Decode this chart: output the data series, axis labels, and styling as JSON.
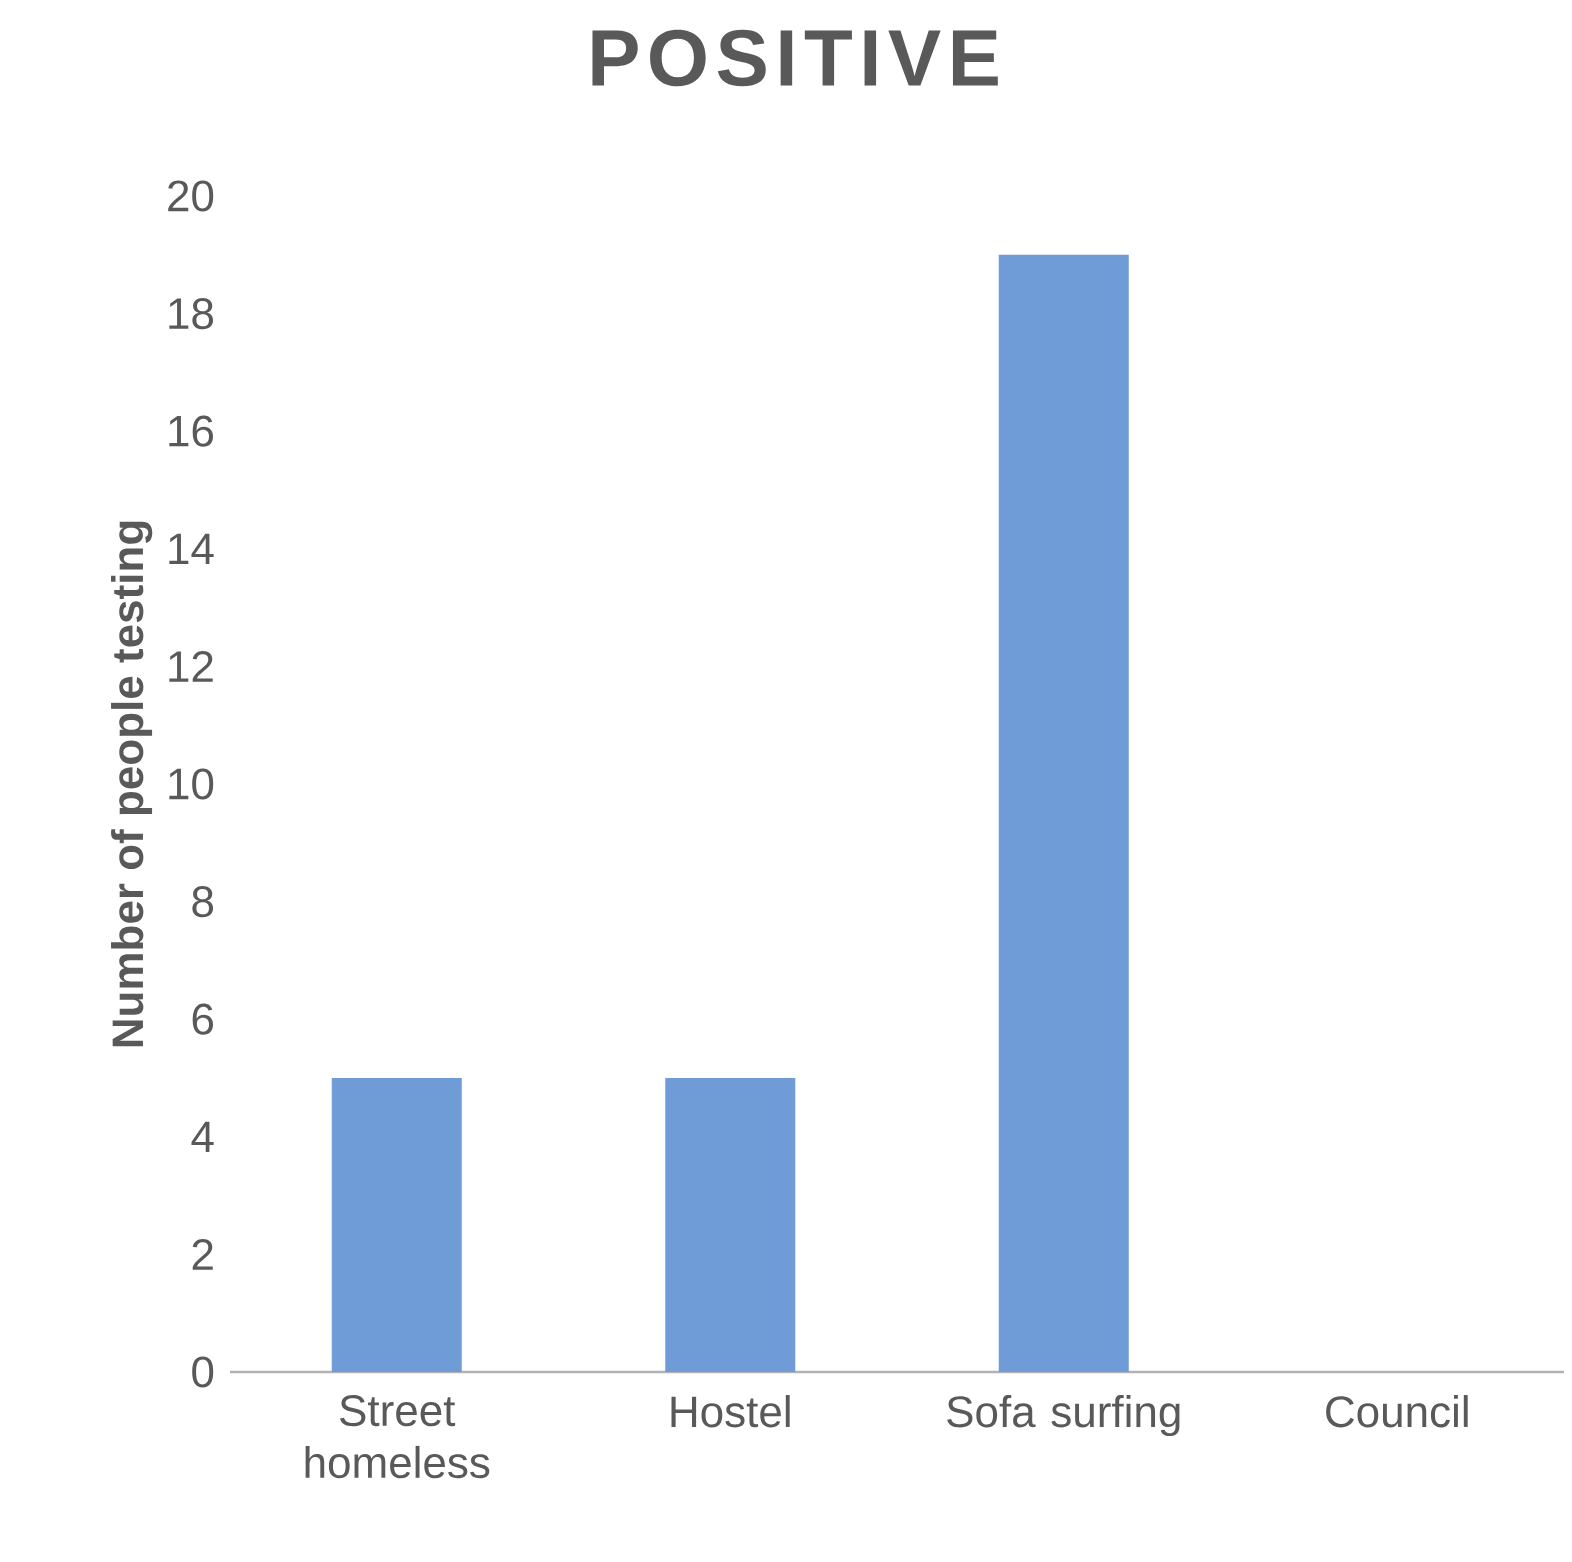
{
  "chart_data": {
    "type": "bar",
    "title": "POSITIVE",
    "ylabel": "Number of people testing",
    "categories": [
      "Street homeless",
      "Hostel",
      "Sofa surfing",
      "Council"
    ],
    "values": [
      5,
      5,
      19,
      0
    ],
    "color": "#6f9bd6",
    "ylim": [
      0,
      20
    ],
    "yticks": [
      0,
      2,
      4,
      6,
      8,
      10,
      12,
      14,
      16,
      18,
      20
    ]
  }
}
